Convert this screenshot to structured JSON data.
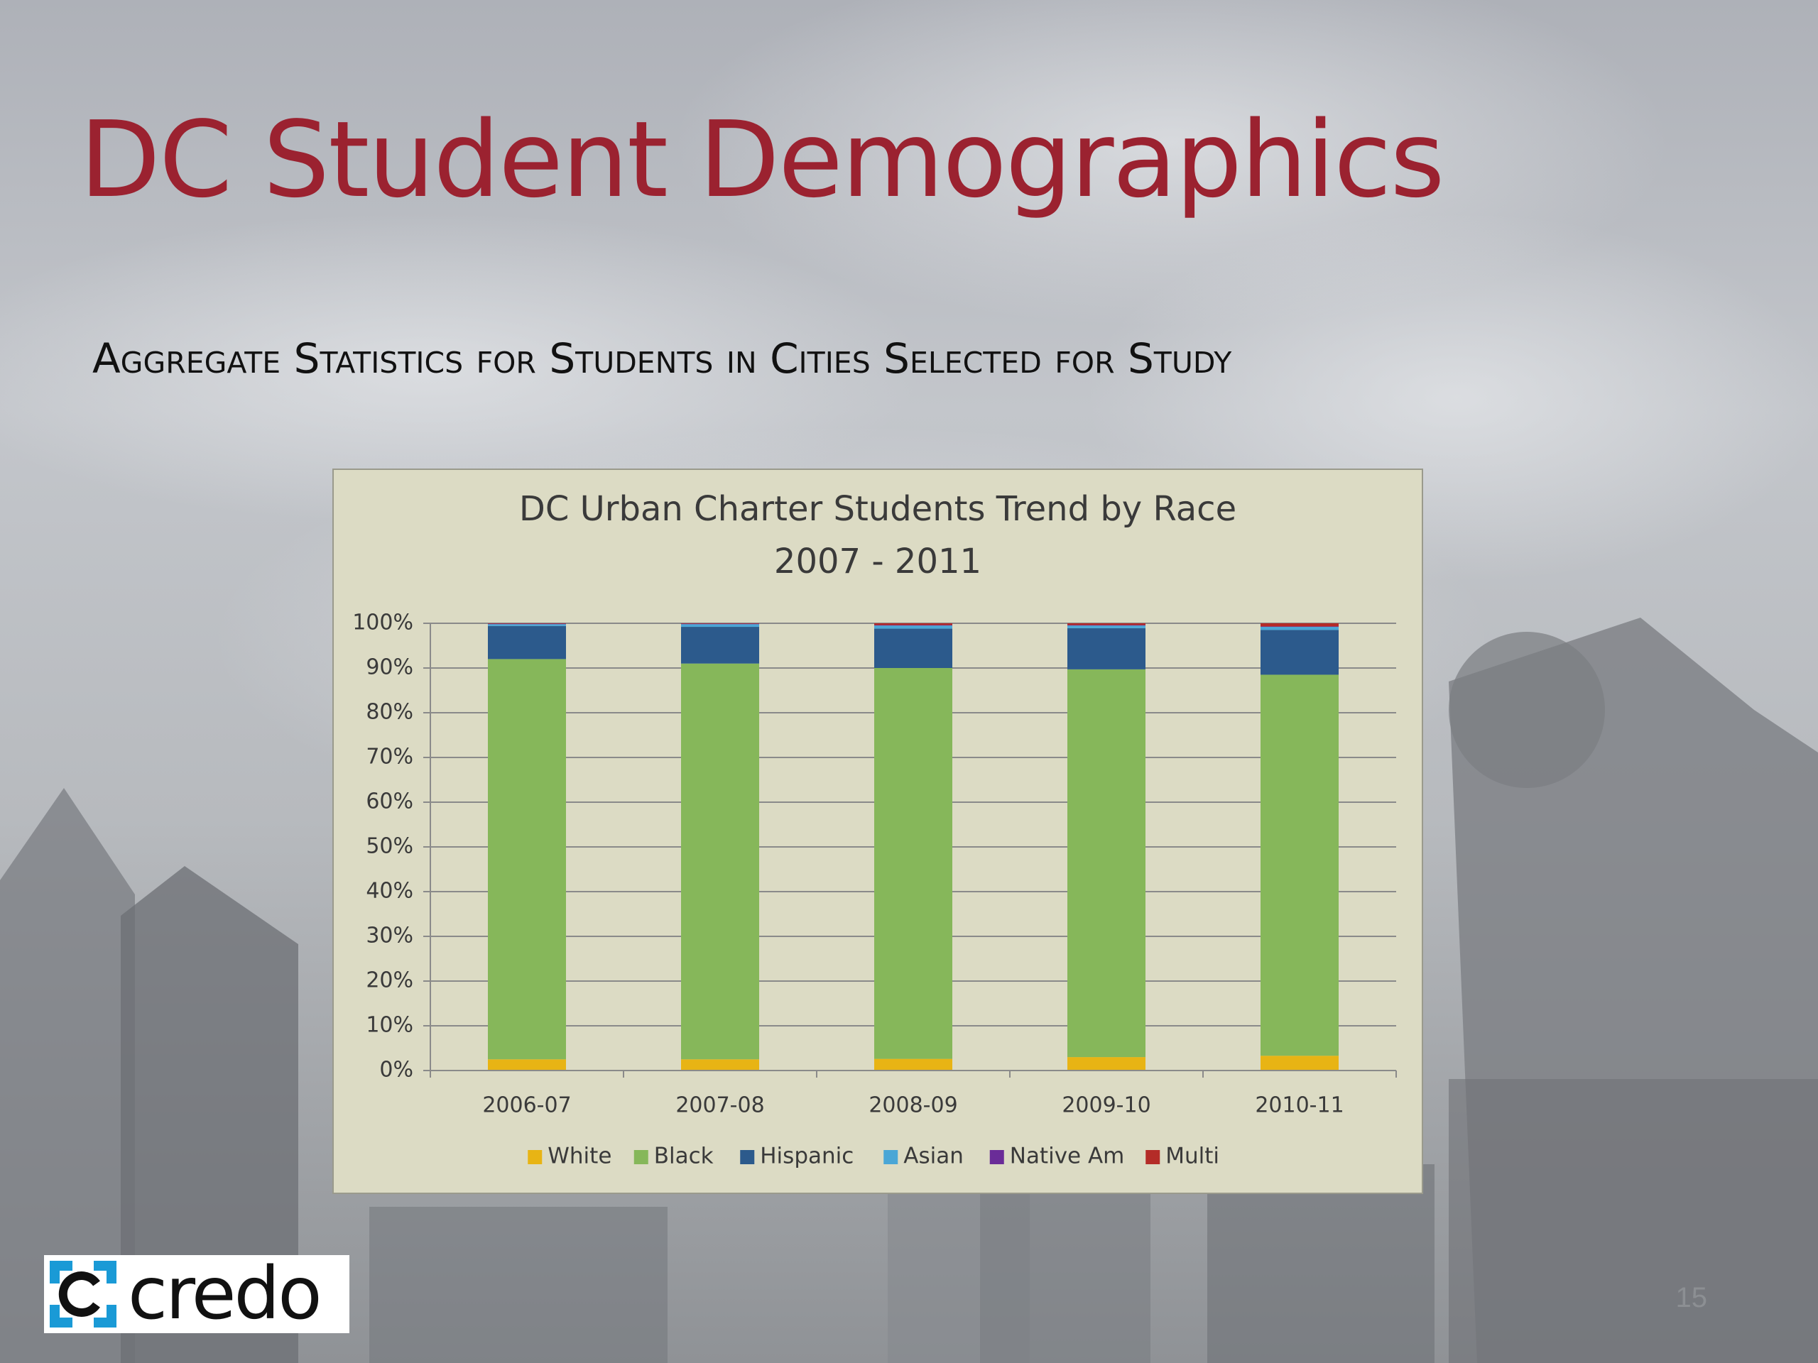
{
  "slide": {
    "title": "DC Student Demographics",
    "subtitle": "Aggregate Statistics for Students in Cities Selected for Study",
    "page_number": "15",
    "logo_text": "credo",
    "title_color": "#9b2230",
    "logo_color": "#1a9ad6"
  },
  "chart_data": {
    "type": "bar",
    "stacked": true,
    "title_lines": [
      "DC Urban Charter Students Trend by Race",
      "2007 - 2011"
    ],
    "categories": [
      "2006-07",
      "2007-08",
      "2008-09",
      "2009-10",
      "2010-11"
    ],
    "series": [
      {
        "name": "White",
        "color": "#e8b414",
        "values": [
          2.5,
          2.5,
          2.6,
          3.0,
          3.3
        ]
      },
      {
        "name": "Black",
        "color": "#86b75a",
        "values": [
          89.5,
          88.5,
          87.4,
          86.7,
          85.2
        ]
      },
      {
        "name": "Hispanic",
        "color": "#2c5a8c",
        "values": [
          7.4,
          8.2,
          8.8,
          9.2,
          10.0
        ]
      },
      {
        "name": "Asian",
        "color": "#4aa6d6",
        "values": [
          0.4,
          0.6,
          0.7,
          0.6,
          0.7
        ]
      },
      {
        "name": "Native Am",
        "color": "#6a2c98",
        "values": [
          0.1,
          0.1,
          0.1,
          0.1,
          0.1
        ]
      },
      {
        "name": "Multi",
        "color": "#b42c28",
        "values": [
          0.1,
          0.1,
          0.4,
          0.4,
          0.7
        ]
      }
    ],
    "ylim": [
      0,
      100
    ],
    "yticks": [
      0,
      10,
      20,
      30,
      40,
      50,
      60,
      70,
      80,
      90,
      100
    ],
    "ytick_labels": [
      "0%",
      "10%",
      "20%",
      "30%",
      "40%",
      "50%",
      "60%",
      "70%",
      "80%",
      "90%",
      "100%"
    ],
    "grid": true,
    "legend_position": "bottom"
  }
}
